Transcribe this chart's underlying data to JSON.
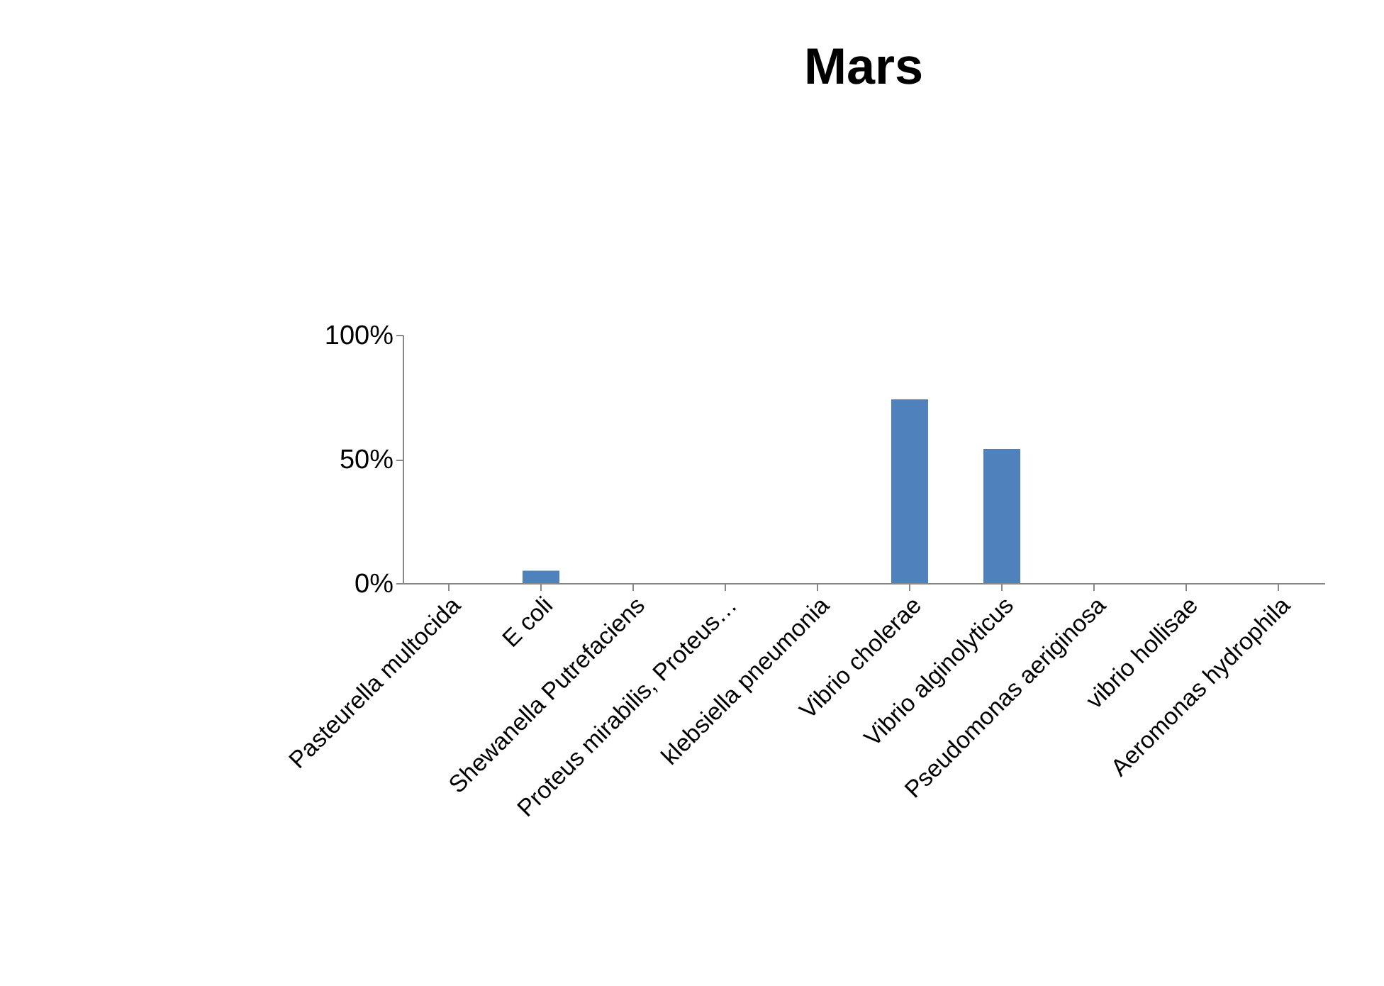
{
  "chart_data": {
    "type": "bar",
    "title": "Mars",
    "categories": [
      "Pasteurella multocida",
      "E coli",
      "Shewanella  Putrefaciens",
      "Proteus mirabilis, Proteus…",
      "klebsiella pneumonia",
      "Vibrio cholerae",
      "Vibrio alginolyticus",
      "Pseudomonas aeriginosa",
      "vibrio hollisae",
      "Aeromonas hydrophila"
    ],
    "values": [
      0,
      5,
      0,
      0,
      0,
      74,
      54,
      0,
      0,
      0
    ],
    "color": "#4f81bd",
    "ylim": [
      0,
      100
    ],
    "yticks": [
      {
        "value": 0,
        "label": "0%"
      },
      {
        "value": 50,
        "label": "50%"
      },
      {
        "value": 100,
        "label": "100%"
      }
    ],
    "grid": false
  }
}
